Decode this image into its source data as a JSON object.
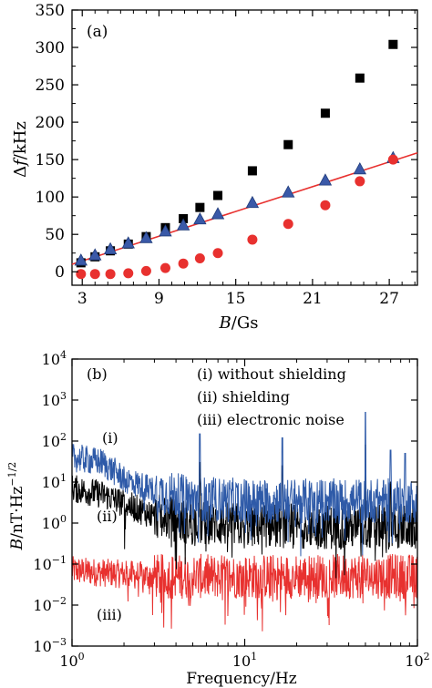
{
  "chart_data": [
    {
      "type": "scatter",
      "panel_label": "(a)",
      "xlabel_var": "B",
      "xlabel_unit": "/Gs",
      "ylabel_prefix": "Δ",
      "ylabel_var": "f",
      "ylabel_unit": "/kHz",
      "xlim": [
        2.2,
        29.2
      ],
      "ylim": [
        -18,
        350
      ],
      "x_ticks": [
        3,
        9,
        15,
        21,
        27
      ],
      "y_ticks": [
        0,
        50,
        100,
        150,
        200,
        250,
        300,
        350
      ],
      "grid": false,
      "series": [
        {
          "marker": "square",
          "color": "#000000",
          "x": [
            2.9,
            4.0,
            5.2,
            6.6,
            8.0,
            9.5,
            10.9,
            12.2,
            13.6,
            16.3,
            19.1,
            22.0,
            24.7,
            27.3
          ],
          "y": [
            12,
            20,
            28,
            37,
            47,
            59,
            71,
            86,
            102,
            135,
            170,
            212,
            259,
            304
          ]
        },
        {
          "marker": "triangle",
          "color": "#3a59a8",
          "x": [
            2.9,
            4.0,
            5.2,
            6.6,
            8.0,
            9.5,
            10.9,
            12.2,
            13.6,
            16.3,
            19.1,
            22.0,
            24.7,
            27.3
          ],
          "y": [
            15,
            22,
            30,
            38,
            45,
            54,
            62,
            70,
            77,
            92,
            106,
            122,
            137,
            152
          ]
        },
        {
          "marker": "circle",
          "color": "#e8312f",
          "x": [
            2.9,
            4.0,
            5.2,
            6.6,
            8.0,
            9.5,
            10.9,
            12.2,
            13.6,
            16.3,
            19.1,
            22.0,
            24.7,
            27.3
          ],
          "y": [
            -3,
            -3,
            -3,
            -2,
            1,
            5,
            11,
            18,
            25,
            43,
            64,
            89,
            121,
            150
          ]
        }
      ],
      "fit_line": {
        "color": "#e8312f",
        "x": [
          2.2,
          29.2
        ],
        "y": [
          10,
          159
        ]
      }
    },
    {
      "type": "line",
      "panel_label": "(b)",
      "xlabel": "Frequency/Hz",
      "ylabel_var": "B",
      "ylabel_unit": "/nT·Hz",
      "ylabel_exponent": "−1/2",
      "xscale": "log",
      "yscale": "log",
      "xlim": [
        1,
        100
      ],
      "ylim": [
        0.001,
        10000
      ],
      "x_ticks": [
        {
          "value": 1,
          "base": "10",
          "exp": "0"
        },
        {
          "value": 10,
          "base": "10",
          "exp": "1"
        },
        {
          "value": 100,
          "base": "10",
          "exp": "2"
        }
      ],
      "y_ticks": [
        {
          "value": 0.001,
          "base": "10",
          "exp": "−3"
        },
        {
          "value": 0.01,
          "base": "10",
          "exp": "−2"
        },
        {
          "value": 0.1,
          "base": "10",
          "exp": "−1"
        },
        {
          "value": 1,
          "base": "10",
          "exp": "0"
        },
        {
          "value": 10,
          "base": "10",
          "exp": "1"
        },
        {
          "value": 100,
          "base": "10",
          "exp": "2"
        },
        {
          "value": 1000,
          "base": "10",
          "exp": "3"
        },
        {
          "value": 10000,
          "base": "10",
          "exp": "4"
        }
      ],
      "grid": false,
      "legend": [
        "(i) without shielding",
        "(ii) shielding",
        "(iii) electronic noise"
      ],
      "series": [
        {
          "label": "(i)",
          "color": "#2e5aa8",
          "level": [
            [
              1,
              40
            ],
            [
              1.5,
              30
            ],
            [
              2,
              12
            ],
            [
              3,
              6
            ],
            [
              5,
              4
            ],
            [
              10,
              3.5
            ],
            [
              30,
              3.5
            ],
            [
              100,
              3.5
            ]
          ],
          "spikes": [
            [
              5.5,
              150
            ],
            [
              16.5,
              120
            ],
            [
              50,
              500
            ],
            [
              70,
              60
            ],
            [
              85,
              50
            ]
          ]
        },
        {
          "label": "(ii)",
          "color": "#000000",
          "level": [
            [
              1,
              7
            ],
            [
              1.5,
              5
            ],
            [
              2,
              3
            ],
            [
              3,
              1.5
            ],
            [
              5,
              1.0
            ],
            [
              10,
              0.9
            ],
            [
              30,
              0.8
            ],
            [
              100,
              0.8
            ]
          ],
          "spikes": [
            [
              5.5,
              30
            ],
            [
              16.5,
              25
            ],
            [
              50,
              80
            ],
            [
              70,
              10
            ]
          ]
        },
        {
          "label": "(iii)",
          "color": "#e8312f",
          "level": [
            [
              1,
              0.07
            ],
            [
              3,
              0.05
            ],
            [
              10,
              0.05
            ],
            [
              30,
              0.05
            ],
            [
              100,
              0.05
            ]
          ],
          "spikes": []
        }
      ]
    }
  ]
}
